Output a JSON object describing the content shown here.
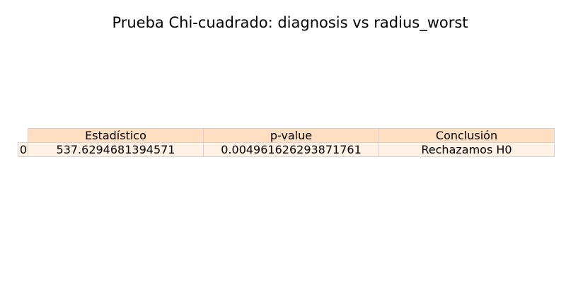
{
  "title": "Prueba Chi-cuadrado: diagnosis vs radius_worst",
  "colors": {
    "header_bg": "#ffdec2",
    "row_bg": "#fff1e3",
    "border": "#d3d3d3"
  },
  "chart_data": {
    "type": "table",
    "title": "Prueba Chi-cuadrado: diagnosis vs radius_worst",
    "columns": [
      "Estadístico",
      "p-value",
      "Conclusión"
    ],
    "rows": [
      {
        "index": "0",
        "cells": [
          "537.6294681394571",
          "0.004961626293871761",
          "Rechazamos H0"
        ]
      }
    ]
  }
}
